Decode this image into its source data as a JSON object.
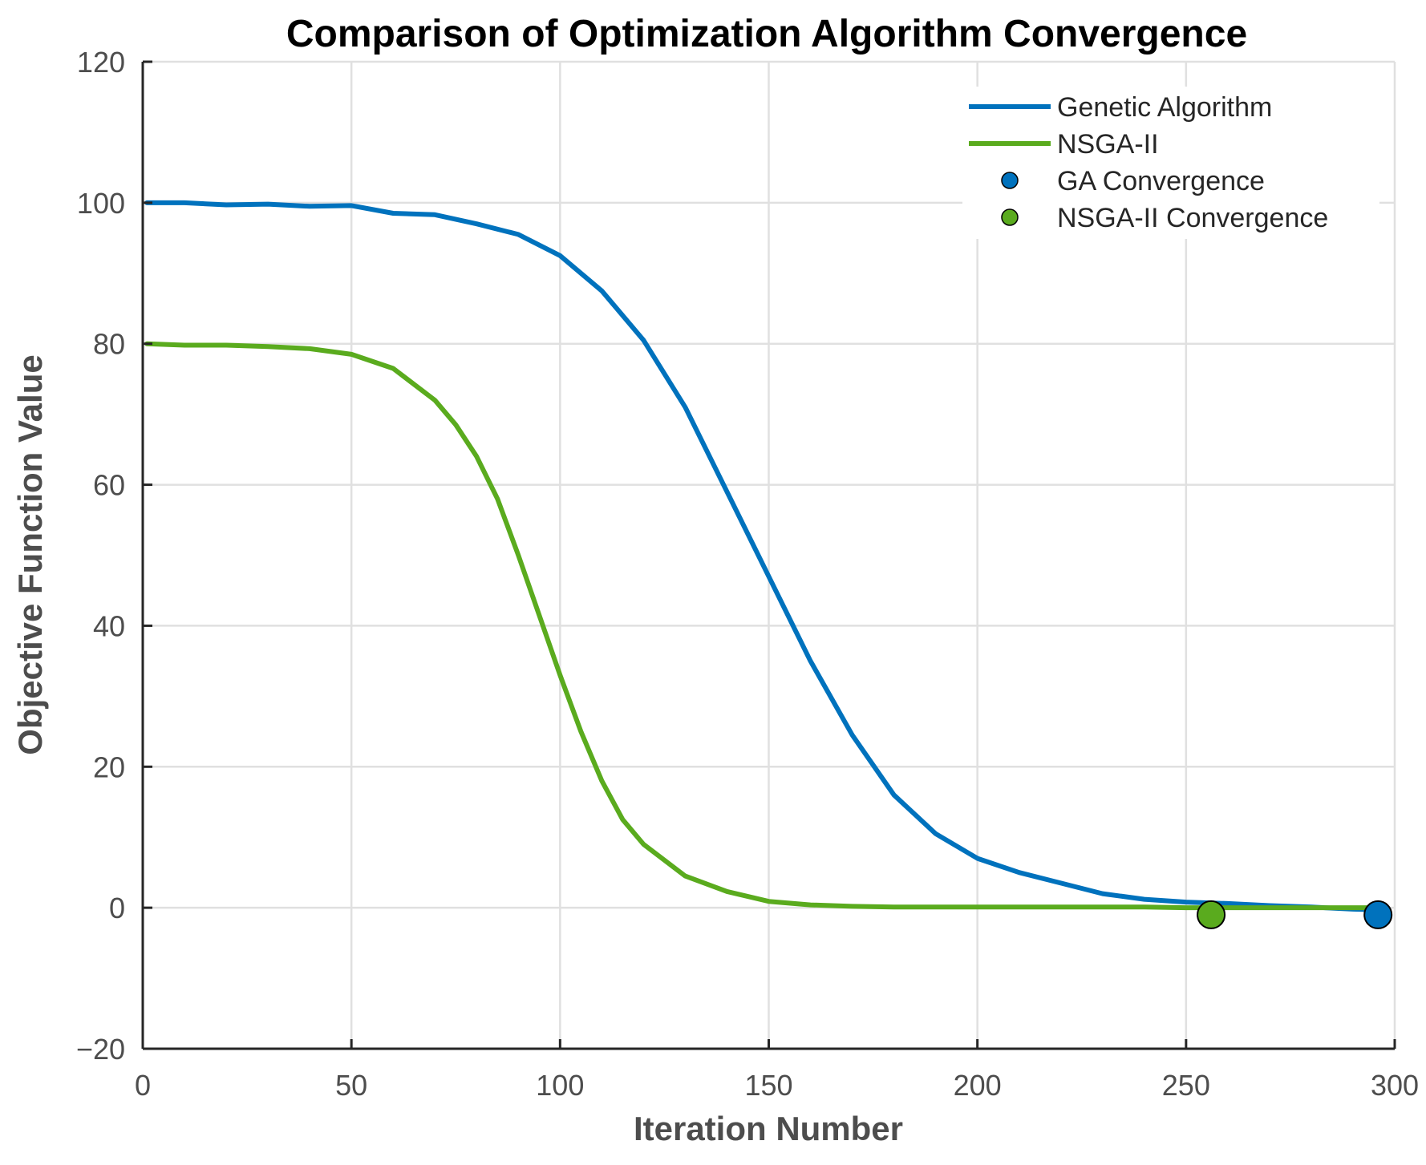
{
  "chart_data": {
    "type": "line",
    "title": "Comparison of Optimization Algorithm Convergence",
    "xlabel": "Iteration Number",
    "ylabel": "Objective Function Value",
    "xlim": [
      0,
      300
    ],
    "ylim": [
      -20,
      120
    ],
    "xticks": [
      0,
      50,
      100,
      150,
      200,
      250,
      300
    ],
    "yticks": [
      -20,
      0,
      20,
      40,
      60,
      80,
      100,
      120
    ],
    "xtick_labels": [
      "0",
      "50",
      "100",
      "150",
      "200",
      "250",
      "300"
    ],
    "ytick_labels": [
      "−20",
      "0",
      "20",
      "40",
      "60",
      "80",
      "100",
      "120"
    ],
    "grid": true,
    "legend_position": "top-right",
    "series": [
      {
        "name": "Genetic Algorithm",
        "color": "#0072BD",
        "x": [
          1,
          10,
          20,
          30,
          40,
          50,
          60,
          70,
          80,
          90,
          100,
          110,
          120,
          130,
          140,
          150,
          160,
          170,
          180,
          190,
          200,
          210,
          220,
          230,
          240,
          250,
          260,
          270,
          280,
          290,
          296
        ],
        "y": [
          100,
          100,
          99.7,
          99.8,
          99.5,
          99.6,
          98.5,
          98.3,
          97,
          95.5,
          92.5,
          87.5,
          80.5,
          71,
          59,
          47,
          35,
          24.5,
          16,
          10.5,
          7,
          5,
          3.5,
          2,
          1.2,
          0.8,
          0.6,
          0.3,
          0.1,
          -0.2,
          -0.3
        ]
      },
      {
        "name": "NSGA-II",
        "color": "#5AAB1E",
        "x": [
          1,
          10,
          20,
          30,
          40,
          50,
          60,
          70,
          75,
          80,
          85,
          90,
          95,
          100,
          105,
          110,
          115,
          120,
          130,
          140,
          150,
          160,
          170,
          180,
          190,
          200,
          210,
          220,
          230,
          240,
          250,
          260,
          270,
          280,
          290,
          296
        ],
        "y": [
          80,
          79.8,
          79.8,
          79.6,
          79.3,
          78.5,
          76.5,
          72,
          68.5,
          64,
          58,
          50,
          41.5,
          33,
          25,
          18,
          12.5,
          9,
          4.5,
          2.3,
          0.9,
          0.4,
          0.2,
          0.1,
          0.1,
          0.1,
          0.1,
          0.1,
          0.1,
          0.1,
          0,
          0,
          0,
          0,
          0,
          0
        ]
      }
    ],
    "markers": [
      {
        "name": "GA Convergence",
        "x": 296,
        "y": -1,
        "color": "#0072BD"
      },
      {
        "name": "NSGA-II Convergence",
        "x": 256,
        "y": -1,
        "color": "#5AAB1E"
      }
    ]
  }
}
